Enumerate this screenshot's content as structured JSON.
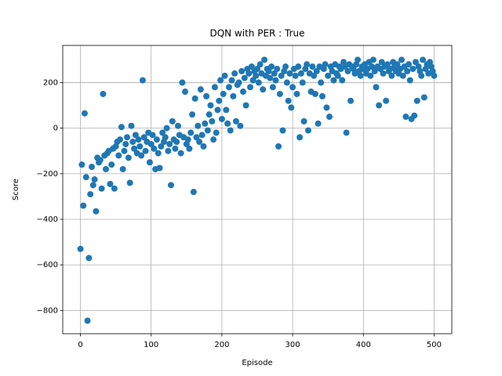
{
  "chart_data": {
    "type": "scatter",
    "title": "DQN with PER : True",
    "x_label": "Episode",
    "y_label": "Score",
    "color": "#1f77b4",
    "grid": true,
    "xlim": [
      -25,
      525
    ],
    "ylim": [
      -902,
      363
    ],
    "xticks": [
      0,
      100,
      200,
      300,
      400,
      500
    ],
    "yticks": [
      {
        "value": -800,
        "label": "−800"
      },
      {
        "value": -600,
        "label": "−600"
      },
      {
        "value": -400,
        "label": "−400"
      },
      {
        "value": -200,
        "label": "−200"
      },
      0,
      200
    ],
    "x": [
      0,
      2,
      4,
      6,
      8,
      10,
      12,
      14,
      16,
      18,
      20,
      22,
      24,
      26,
      28,
      30,
      32,
      34,
      36,
      38,
      40,
      42,
      44,
      46,
      48,
      50,
      52,
      54,
      56,
      58,
      60,
      62,
      64,
      66,
      68,
      70,
      72,
      74,
      76,
      78,
      80,
      82,
      84,
      86,
      88,
      90,
      92,
      94,
      96,
      98,
      100,
      102,
      104,
      106,
      108,
      110,
      112,
      114,
      116,
      118,
      120,
      122,
      124,
      126,
      128,
      130,
      132,
      134,
      136,
      138,
      140,
      142,
      144,
      146,
      148,
      150,
      152,
      154,
      156,
      158,
      160,
      162,
      164,
      166,
      168,
      170,
      172,
      174,
      176,
      178,
      180,
      182,
      184,
      186,
      188,
      190,
      192,
      194,
      196,
      198,
      200,
      202,
      204,
      206,
      208,
      210,
      212,
      214,
      216,
      218,
      220,
      222,
      224,
      226,
      228,
      230,
      232,
      234,
      236,
      238,
      240,
      242,
      244,
      246,
      248,
      250,
      252,
      254,
      256,
      258,
      260,
      262,
      264,
      266,
      268,
      270,
      272,
      274,
      276,
      278,
      280,
      282,
      284,
      286,
      288,
      290,
      292,
      294,
      296,
      298,
      300,
      302,
      304,
      306,
      308,
      310,
      312,
      314,
      316,
      318,
      320,
      322,
      324,
      326,
      328,
      330,
      332,
      334,
      336,
      338,
      340,
      342,
      344,
      346,
      348,
      350,
      352,
      354,
      356,
      358,
      360,
      362,
      364,
      366,
      368,
      370,
      372,
      374,
      376,
      378,
      380,
      382,
      384,
      386,
      388,
      390,
      392,
      394,
      396,
      398,
      400,
      402,
      404,
      406,
      408,
      410,
      412,
      414,
      416,
      418,
      420,
      422,
      424,
      426,
      428,
      430,
      432,
      434,
      436,
      438,
      440,
      442,
      444,
      446,
      448,
      450,
      452,
      454,
      456,
      458,
      460,
      462,
      464,
      466,
      468,
      470,
      472,
      474,
      476,
      478,
      480,
      482,
      484,
      486,
      488,
      490,
      492,
      494,
      496,
      498,
      500
    ],
    "y": [
      -530,
      -160,
      -340,
      65,
      -215,
      -845,
      -570,
      -290,
      -170,
      -250,
      -225,
      -365,
      -130,
      -150,
      -140,
      -265,
      150,
      -120,
      -180,
      -110,
      -100,
      -245,
      -160,
      -90,
      -265,
      -80,
      -60,
      -120,
      -50,
      5,
      -180,
      -100,
      -70,
      -40,
      -130,
      -240,
      10,
      -60,
      -90,
      -30,
      -110,
      -50,
      -80,
      -120,
      210,
      -40,
      -100,
      -60,
      -20,
      -150,
      -70,
      -30,
      -90,
      -180,
      -50,
      -110,
      -175,
      -80,
      -20,
      -60,
      -40,
      0,
      -100,
      -70,
      -250,
      30,
      -50,
      -90,
      -60,
      10,
      -30,
      -110,
      200,
      -40,
      160,
      -70,
      -50,
      -90,
      -20,
      60,
      -280,
      130,
      -40,
      10,
      -60,
      170,
      -30,
      -80,
      20,
      140,
      -10,
      60,
      100,
      30,
      -50,
      180,
      -20,
      80,
      120,
      210,
      40,
      150,
      230,
      80,
      20,
      180,
      -10,
      210,
      140,
      240,
      30,
      190,
      200,
      10,
      250,
      160,
      220,
      100,
      260,
      240,
      180,
      270,
      210,
      250,
      230,
      260,
      200,
      280,
      240,
      170,
      300,
      230,
      260,
      250,
      220,
      270,
      180,
      240,
      210,
      260,
      -80,
      150,
      230,
      -10,
      250,
      270,
      200,
      120,
      240,
      90,
      180,
      260,
      230,
      150,
      270,
      -40,
      240,
      200,
      30,
      260,
      280,
      -10,
      240,
      160,
      270,
      230,
      150,
      250,
      20,
      270,
      200,
      140,
      260,
      280,
      90,
      230,
      50,
      270,
      250,
      210,
      280,
      240,
      230,
      270,
      260,
      210,
      290,
      270,
      -20,
      250,
      280,
      120,
      270,
      260,
      240,
      280,
      300,
      250,
      230,
      270,
      260,
      280,
      240,
      260,
      290,
      230,
      270,
      300,
      250,
      180,
      270,
      100,
      260,
      290,
      240,
      270,
      120,
      280,
      250,
      260,
      230,
      290,
      270,
      250,
      280,
      240,
      260,
      300,
      230,
      270,
      50,
      250,
      280,
      210,
      40,
      260,
      55,
      290,
      120,
      270,
      250,
      230,
      300,
      135,
      260,
      280,
      240,
      290,
      270,
      250,
      230
    ]
  }
}
